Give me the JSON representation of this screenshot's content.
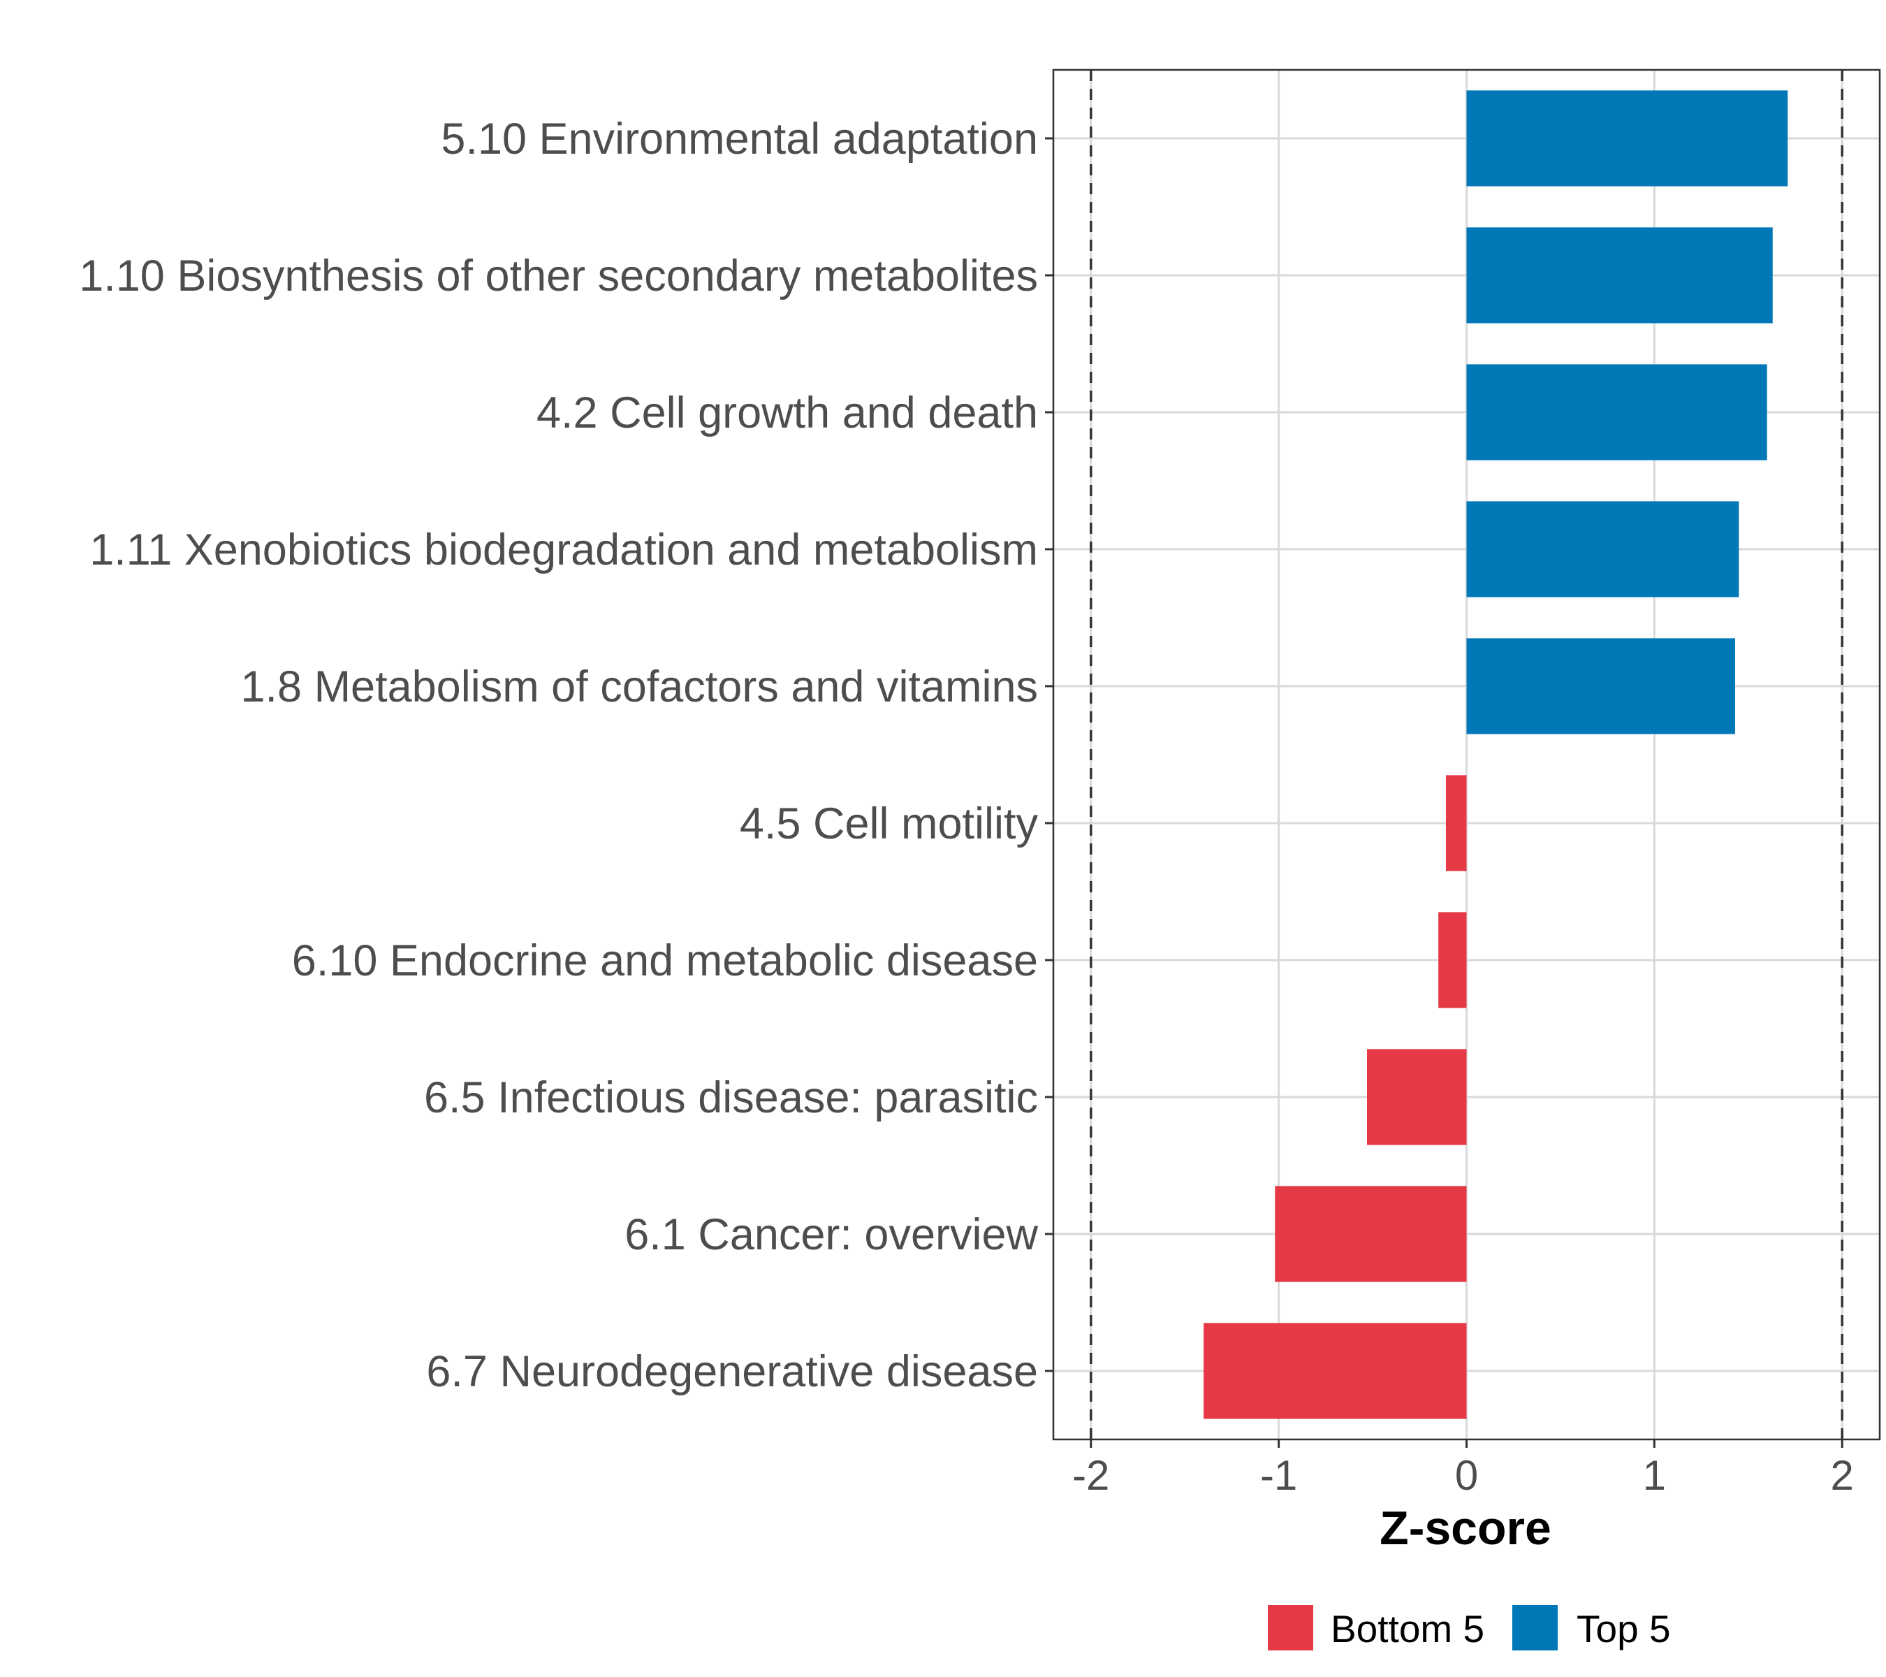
{
  "chart_data": {
    "type": "bar",
    "orientation": "horizontal",
    "categories": [
      "5.10 Environmental adaptation",
      "1.10 Biosynthesis of other secondary metabolites",
      "4.2 Cell growth and death",
      "1.11 Xenobiotics biodegradation and metabolism",
      "1.8 Metabolism of cofactors and vitamins",
      "4.5 Cell motility",
      "6.10 Endocrine and metabolic disease",
      "6.5 Infectious disease: parasitic",
      "6.1 Cancer: overview",
      "6.7 Neurodegenerative disease"
    ],
    "values": [
      1.71,
      1.63,
      1.6,
      1.45,
      1.43,
      -0.11,
      -0.15,
      -0.53,
      -1.02,
      -1.4
    ],
    "groups": [
      "Top 5",
      "Top 5",
      "Top 5",
      "Top 5",
      "Top 5",
      "Bottom 5",
      "Bottom 5",
      "Bottom 5",
      "Bottom 5",
      "Bottom 5"
    ],
    "xlabel": "Z-score",
    "ylabel": "",
    "xlim": [
      -2.2,
      2.2
    ],
    "xticks": [
      -2,
      -1,
      0,
      1,
      2
    ],
    "xtick_labels": [
      "-2",
      "-1",
      "0",
      "1",
      "2"
    ],
    "reference_lines": [
      -2,
      2
    ],
    "grid": true,
    "legend": {
      "position": "bottom",
      "entries": [
        {
          "label": "Bottom 5",
          "color": "#e63946"
        },
        {
          "label": "Top 5",
          "color": "#0077b6"
        }
      ]
    }
  },
  "colors": {
    "top": "#0077b6",
    "bottom": "#e63946",
    "grid": "#d9d9d9",
    "panel_border": "#333333",
    "text": "#4d4d4d"
  }
}
